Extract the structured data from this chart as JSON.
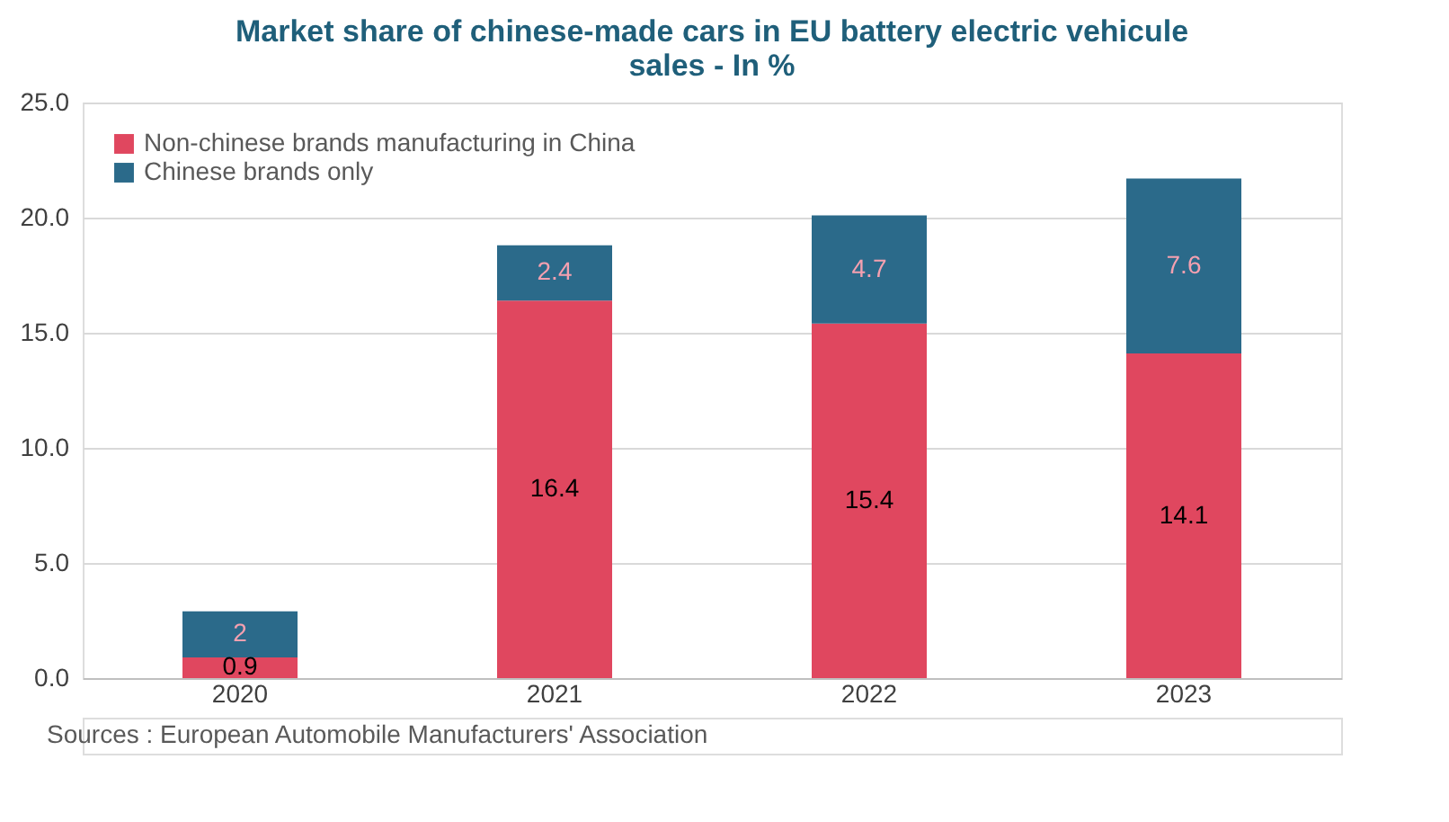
{
  "chart_data": {
    "type": "bar",
    "title": "Market share of chinese-made cars in EU battery electric vehicule sales - In %",
    "categories": [
      "2020",
      "2021",
      "2022",
      "2023"
    ],
    "stacked": true,
    "data_labels": true,
    "grid": "y",
    "legend": "top left",
    "series": [
      {
        "name": "Non-chinese brands manufacturing in China",
        "color": "#e0475f",
        "values": [
          0.9,
          16.4,
          15.4,
          14.1
        ]
      },
      {
        "name": "Chinese brands only",
        "color": "#2b6a8a",
        "values": [
          2,
          2.4,
          4.7,
          7.6
        ]
      }
    ],
    "ylim": [
      0,
      25
    ],
    "yticks": [
      {
        "value": 0,
        "label": "0.0"
      },
      {
        "value": 5,
        "label": "5.0"
      },
      {
        "value": 10,
        "label": "10.0"
      },
      {
        "value": 15,
        "label": "15.0"
      },
      {
        "value": 20,
        "label": "20.0"
      },
      {
        "value": 25,
        "label": "25.0"
      }
    ],
    "annotations": [
      "Sources : European Automobile Manufacturers' Association"
    ]
  }
}
